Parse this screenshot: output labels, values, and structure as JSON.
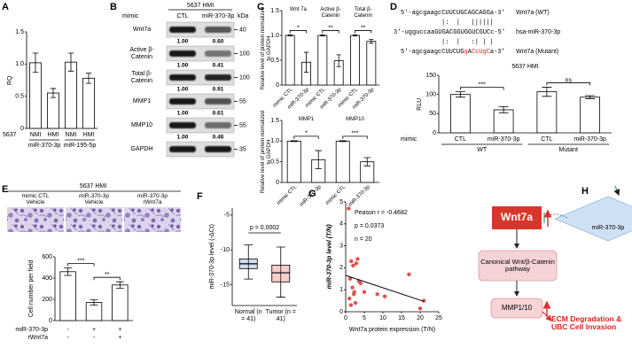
{
  "panel_labels": [
    "A",
    "B",
    "C",
    "D",
    "E",
    "F",
    "G",
    "H"
  ],
  "chart_data": [
    {
      "type": "bar",
      "ylabel": "RQ",
      "row_label": "5637",
      "categories": [
        "NMI",
        "HMI",
        "NMI",
        "HMI"
      ],
      "groups": [
        "miR-370-3p",
        "miR-195-5p"
      ],
      "values": [
        1.02,
        0.55,
        1.03,
        0.78
      ],
      "errors": [
        0.15,
        0.07,
        0.14,
        0.08
      ],
      "color": "#ffffff",
      "ylim": [
        0,
        1.5
      ],
      "yticks": [
        0,
        0.5,
        {
          "value": 1,
          "label": "1.0"
        },
        1.5
      ]
    },
    {
      "type": "bar",
      "ylabel": "Relative level of protein normalized to GAPDH",
      "categories": [
        "mimic CTL",
        "miR-370-3p",
        "mimic CTL",
        "miR-370-3p",
        "mimic CTL",
        "miR-370-3p"
      ],
      "groups": [
        "Wnt 7a",
        "Active β-Catenin",
        "Total β-Catenin"
      ],
      "values": [
        1,
        0.46,
        1,
        0.49,
        1,
        0.88
      ],
      "errors": [
        0.01,
        0.2,
        0.01,
        0.12,
        0.01,
        0.04
      ],
      "significance": [
        "*",
        "**",
        "**"
      ],
      "color": "#ffffff",
      "ylim": [
        0,
        1.5
      ],
      "yticks": [
        0,
        0.5,
        {
          "value": 1,
          "label": "1.0"
        },
        1.5
      ]
    },
    {
      "type": "bar",
      "ylabel": "Relative level of protein normalized to GAPDH",
      "categories": [
        "mimic CTL",
        "miR-370-3p",
        "mimic CTL",
        "miR-370-3p"
      ],
      "groups": [
        "MMP1",
        "MMP10"
      ],
      "values": [
        1,
        0.55,
        1,
        0.5
      ],
      "errors": [
        0.01,
        0.22,
        0.01,
        0.1
      ],
      "significance": [
        "*",
        "***"
      ],
      "color": "#ffffff",
      "ylim": [
        0,
        1.5
      ],
      "yticks": [
        0,
        0.5,
        {
          "value": 1,
          "label": "1.0"
        },
        1.5
      ]
    },
    {
      "type": "bar",
      "title": "5637 HMI",
      "ylabel": "RLU",
      "row_label": "mimic",
      "categories": [
        "CTL",
        "miR-370-3p",
        "CTL",
        "miR-370-3p"
      ],
      "groups": [
        "WT",
        "Mutant"
      ],
      "values": [
        100,
        60,
        107,
        93
      ],
      "errors": [
        7,
        8,
        12,
        4
      ],
      "significance": [
        "***",
        "ns"
      ],
      "color": "#ffffff",
      "ylim": [
        0,
        150
      ],
      "yticks": [
        0,
        50,
        100,
        150
      ]
    },
    {
      "type": "bar",
      "ylabel": "Cell number per field",
      "categories": [
        null,
        null,
        null
      ],
      "values": [
        460,
        170,
        335
      ],
      "errors": [
        35,
        25,
        30
      ],
      "significance": [
        "***",
        "**"
      ],
      "color": "#ffffff",
      "ylim": [
        0,
        600
      ],
      "yticks": [
        0,
        200,
        400,
        600
      ],
      "conditions": [
        {
          "name": "miR-370-3p",
          "marks": [
            "-",
            "+",
            "+"
          ]
        },
        {
          "name": "rWnt7a",
          "marks": [
            "-",
            "-",
            "+"
          ]
        }
      ]
    },
    {
      "type": "box",
      "ylabel": "miR-370-3p level (-ΔCt)",
      "annotation": "p = 0.0002",
      "categories": [
        "Normal (n = 41)",
        "Tumor (n = 41)"
      ],
      "colors": [
        "#3b7fd4",
        "#e03c3c"
      ],
      "min": [
        -14.2,
        -16.8
      ],
      "q1": [
        -12.7,
        -14.6
      ],
      "median": [
        -12,
        -13.3
      ],
      "q3": [
        -11.3,
        -12.2
      ],
      "max": [
        -9.3,
        -9.6
      ],
      "ylim": [
        -18,
        -4
      ],
      "yticks": [
        -15,
        -10,
        -5
      ]
    },
    {
      "type": "scatter",
      "xlabel": "Wnt7a protein expression (T/N)",
      "ylabel": "miR-370-3p level (T/N)",
      "annotations": [
        "Peason r = -0.4682",
        "p = 0.0373",
        "n = 20"
      ],
      "color": "#e05050",
      "x": [
        0.8,
        1.2,
        1.5,
        2,
        2.3,
        2.8,
        3.5,
        1,
        1.8,
        2.6,
        3.2,
        4,
        1.4,
        2.2,
        5,
        8.5,
        10.5,
        17,
        20,
        21
      ],
      "y": [
        4.7,
        1.5,
        2.3,
        2.1,
        0.9,
        2.2,
        1.4,
        0.6,
        1.1,
        0.4,
        2.4,
        1.3,
        0.3,
        0.8,
        0.9,
        0.8,
        0.7,
        1.7,
        0.15,
        0.5
      ],
      "xlim": [
        0,
        25
      ],
      "xticks": [
        0,
        5,
        10,
        15,
        20,
        25
      ],
      "ylim": [
        0,
        5
      ],
      "yticks": [
        0,
        1,
        2,
        3,
        4,
        5
      ]
    }
  ],
  "blot": {
    "title": "5637 HMI",
    "mimic_label": "mimic",
    "lanes": [
      "CTL",
      "miR-370-3p"
    ],
    "unit": "kDa",
    "rows": [
      {
        "protein": "Wnt7a",
        "kda": 40,
        "values": [
          1,
          0.6
        ],
        "value_labels": [
          "1.00",
          "0.60"
        ]
      },
      {
        "protein": "Active β-Catenin",
        "kda": 100,
        "values": [
          1,
          0.41
        ],
        "value_labels": [
          "1.00",
          "0.41"
        ]
      },
      {
        "protein": "Total β-Catenin",
        "kda": 100,
        "values": [
          1,
          0.91
        ],
        "value_labels": [
          "1.00",
          "0.91"
        ]
      },
      {
        "protein": "MMP1",
        "kda": 55,
        "values": [
          1,
          0.61
        ],
        "value_labels": [
          "1.00",
          "0.61"
        ]
      },
      {
        "protein": "MMP10",
        "kda": 55,
        "values": [
          1,
          0.46
        ],
        "value_labels": [
          "1.00",
          "0.46"
        ]
      },
      {
        "protein": "GAPDH",
        "kda": 35
      }
    ]
  },
  "sequences": {
    "rows": [
      {
        "seq": "5'-agcgaagcCUUCUGCAGCAGGa-3'",
        "name": "Wnt7a (WT)"
      },
      {
        "seq": "3'-ugguccaaGUGACGGUGGUCGUCc-5'",
        "name": "hsa-miR-370-3p"
      },
      {
        "seq": "5'-agcgaagcCUUCUGgACcUgCa-3'",
        "name": "Wnt7a (Mutant)"
      }
    ],
    "pairings": [
      "|:  |   ||||||",
      "|:  |   :| | |"
    ]
  },
  "invasion": {
    "title": "5637 HMI",
    "conditions": [
      "mimic CTL Vehicle",
      "miR-370-3p Vehicle",
      "miR-370-3p rWnt7a"
    ]
  },
  "diagram": {
    "mirna": "miR-370-3p",
    "gene": "Wnt7a",
    "pathway": "Canonical Wnt/β-Catenin pathway",
    "target": "MMP1/10",
    "outcome": "ECM Degradation & UBC Cell Invasion"
  }
}
